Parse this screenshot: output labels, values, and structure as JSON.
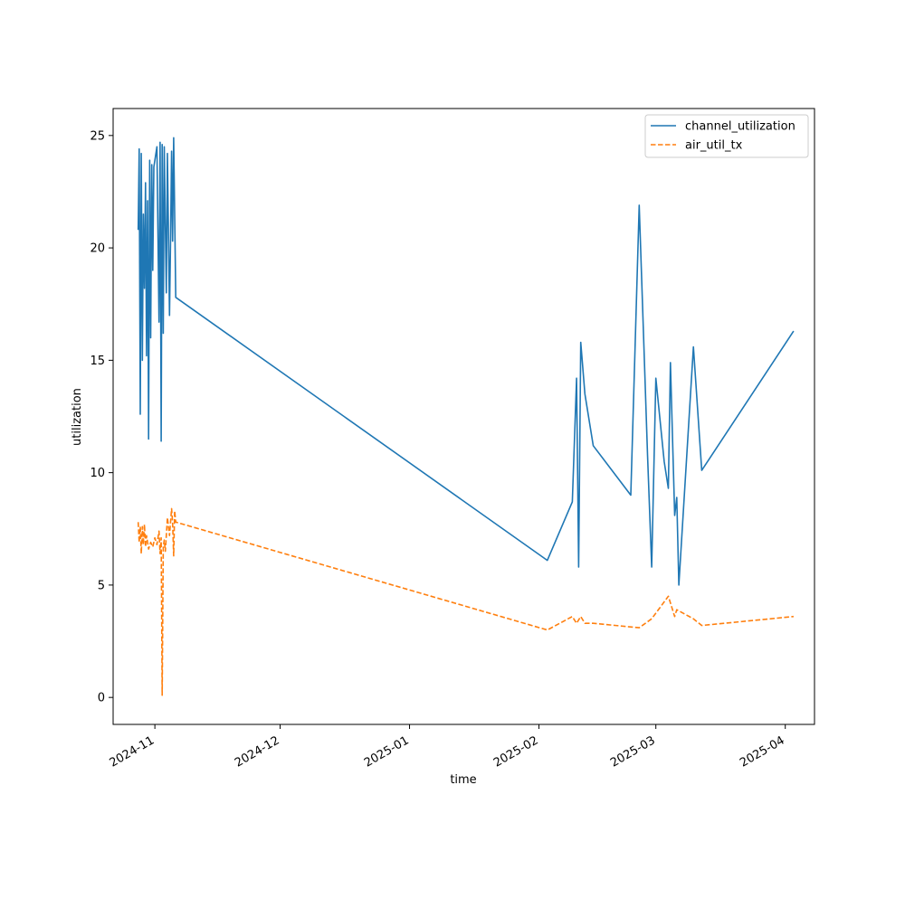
{
  "chart_data": {
    "type": "line",
    "title": "",
    "xlabel": "time",
    "ylabel": "utilization",
    "x_type": "date",
    "xlim": [
      "2024-10-22",
      "2025-04-08"
    ],
    "ylim": [
      -1.2,
      26.2
    ],
    "x_ticks": [
      "2024-11-01",
      "2024-12-01",
      "2025-01-01",
      "2025-02-01",
      "2025-03-01",
      "2025-04-01"
    ],
    "x_tick_labels": [
      "2024-11",
      "2024-12",
      "2025-01",
      "2025-02",
      "2025-03",
      "2025-04"
    ],
    "y_ticks": [
      0,
      5,
      10,
      15,
      20,
      25
    ],
    "y_tick_labels": [
      "0",
      "5",
      "10",
      "15",
      "20",
      "25"
    ],
    "grid": false,
    "legend_position": "upper right",
    "series": [
      {
        "name": "channel_utilization",
        "color": "#1f77b4",
        "linestyle": "solid",
        "points": [
          [
            "2024-10-28T00:00",
            20.8
          ],
          [
            "2024-10-28T06:00",
            24.4
          ],
          [
            "2024-10-28T12:00",
            12.6
          ],
          [
            "2024-10-28T18:00",
            24.2
          ],
          [
            "2024-10-29T00:00",
            15.0
          ],
          [
            "2024-10-29T06:00",
            21.5
          ],
          [
            "2024-10-29T12:00",
            18.2
          ],
          [
            "2024-10-29T18:00",
            22.9
          ],
          [
            "2024-10-30T00:00",
            15.2
          ],
          [
            "2024-10-30T06:00",
            22.1
          ],
          [
            "2024-10-30T12:00",
            11.5
          ],
          [
            "2024-10-30T18:00",
            23.9
          ],
          [
            "2024-10-31T00:00",
            16.0
          ],
          [
            "2024-10-31T06:00",
            23.7
          ],
          [
            "2024-10-31T12:00",
            19.0
          ],
          [
            "2024-10-31T18:00",
            23.6
          ],
          [
            "2024-11-01T12:00",
            24.5
          ],
          [
            "2024-11-02T00:00",
            16.7
          ],
          [
            "2024-11-02T06:00",
            24.7
          ],
          [
            "2024-11-02T12:00",
            11.4
          ],
          [
            "2024-11-02T18:00",
            24.6
          ],
          [
            "2024-11-03T00:00",
            16.2
          ],
          [
            "2024-11-03T06:00",
            24.5
          ],
          [
            "2024-11-03T12:00",
            21.0
          ],
          [
            "2024-11-03T18:00",
            18.0
          ],
          [
            "2024-11-04T00:00",
            24.2
          ],
          [
            "2024-11-04T12:00",
            17.0
          ],
          [
            "2024-11-04T18:00",
            20.2
          ],
          [
            "2024-11-05T00:00",
            24.3
          ],
          [
            "2024-11-05T06:00",
            20.3
          ],
          [
            "2024-11-05T12:00",
            24.9
          ],
          [
            "2024-11-06T00:00",
            17.8
          ],
          [
            "2025-02-03T00:00",
            6.1
          ],
          [
            "2025-02-09T00:00",
            8.7
          ],
          [
            "2025-02-10T00:00",
            14.2
          ],
          [
            "2025-02-10T12:00",
            5.8
          ],
          [
            "2025-02-11T00:00",
            15.8
          ],
          [
            "2025-02-12T00:00",
            13.5
          ],
          [
            "2025-02-14T00:00",
            11.2
          ],
          [
            "2025-02-23T00:00",
            9.0
          ],
          [
            "2025-02-25T00:00",
            21.9
          ],
          [
            "2025-02-27T00:00",
            10.8
          ],
          [
            "2025-02-28T00:00",
            5.8
          ],
          [
            "2025-03-01T00:00",
            14.2
          ],
          [
            "2025-03-03T00:00",
            10.5
          ],
          [
            "2025-03-04T00:00",
            9.3
          ],
          [
            "2025-03-04T12:00",
            14.9
          ],
          [
            "2025-03-05T12:00",
            8.1
          ],
          [
            "2025-03-06T00:00",
            8.9
          ],
          [
            "2025-03-06T12:00",
            5.0
          ],
          [
            "2025-03-10T00:00",
            15.6
          ],
          [
            "2025-03-12T00:00",
            10.1
          ],
          [
            "2025-04-03T00:00",
            16.3
          ]
        ]
      },
      {
        "name": "air_util_tx",
        "color": "#ff7f0e",
        "linestyle": "dashed",
        "points": [
          [
            "2024-10-28T00:00",
            7.8
          ],
          [
            "2024-10-28T06:00",
            6.9
          ],
          [
            "2024-10-28T12:00",
            7.6
          ],
          [
            "2024-10-28T18:00",
            6.4
          ],
          [
            "2024-10-29T00:00",
            7.6
          ],
          [
            "2024-10-29T06:00",
            6.8
          ],
          [
            "2024-10-29T12:00",
            7.7
          ],
          [
            "2024-10-29T18:00",
            6.7
          ],
          [
            "2024-10-30T00:00",
            7.2
          ],
          [
            "2024-10-30T12:00",
            6.6
          ],
          [
            "2024-10-31T00:00",
            6.9
          ],
          [
            "2024-10-31T12:00",
            6.7
          ],
          [
            "2024-11-01T00:00",
            7.1
          ],
          [
            "2024-11-01T12:00",
            6.8
          ],
          [
            "2024-11-02T00:00",
            7.4
          ],
          [
            "2024-11-02T06:00",
            6.4
          ],
          [
            "2024-11-02T12:00",
            7.1
          ],
          [
            "2024-11-02T18:00",
            0.1
          ],
          [
            "2024-11-03T00:00",
            6.7
          ],
          [
            "2024-11-03T06:00",
            7.0
          ],
          [
            "2024-11-03T12:00",
            6.5
          ],
          [
            "2024-11-04T00:00",
            8.0
          ],
          [
            "2024-11-04T12:00",
            7.2
          ],
          [
            "2024-11-05T00:00",
            8.4
          ],
          [
            "2024-11-05T06:00",
            7.8
          ],
          [
            "2024-11-05T12:00",
            6.3
          ],
          [
            "2024-11-05T18:00",
            8.3
          ],
          [
            "2024-11-06T00:00",
            7.8
          ],
          [
            "2025-02-03T00:00",
            3.0
          ],
          [
            "2025-02-09T00:00",
            3.6
          ],
          [
            "2025-02-10T00:00",
            3.3
          ],
          [
            "2025-02-11T00:00",
            3.6
          ],
          [
            "2025-02-12T00:00",
            3.3
          ],
          [
            "2025-02-14T00:00",
            3.3
          ],
          [
            "2025-02-25T00:00",
            3.1
          ],
          [
            "2025-02-28T00:00",
            3.5
          ],
          [
            "2025-03-04T00:00",
            4.5
          ],
          [
            "2025-03-05T12:00",
            3.6
          ],
          [
            "2025-03-06T00:00",
            3.9
          ],
          [
            "2025-03-10T00:00",
            3.5
          ],
          [
            "2025-03-12T00:00",
            3.2
          ],
          [
            "2025-04-03T00:00",
            3.6
          ]
        ]
      }
    ]
  }
}
